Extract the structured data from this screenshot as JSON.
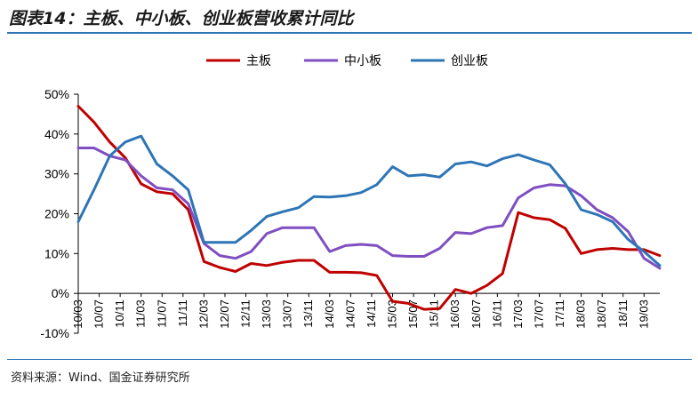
{
  "header": {
    "figure_title": "图表14：主板、中小板、创业板营收累计同比"
  },
  "footer": {
    "source": "资料来源：Wind、国金证券研究所"
  },
  "colors": {
    "main_board": "#c00000",
    "sme_board": "#7f4fc2",
    "chinext": "#2e75b6",
    "rule": "#2e75b6"
  },
  "chart_data": {
    "type": "line",
    "title": "图表14：主板、中小板、创业板营收累计同比",
    "xlabel": "",
    "ylabel": "",
    "ylim": [
      -10,
      50
    ],
    "yticks": [
      -10,
      0,
      10,
      20,
      30,
      40,
      50
    ],
    "ytick_labels": [
      "-10%",
      "0%",
      "10%",
      "20%",
      "30%",
      "40%",
      "50%"
    ],
    "grid": false,
    "legend_position": "top-center",
    "x": [
      "10/03",
      "10/06",
      "10/09",
      "10/12",
      "11/03",
      "11/06",
      "11/09",
      "11/12",
      "12/03",
      "12/06",
      "12/09",
      "12/12",
      "13/03",
      "13/06",
      "13/09",
      "13/12",
      "14/03",
      "14/06",
      "14/09",
      "14/12",
      "15/03",
      "15/06",
      "15/09",
      "15/12",
      "16/03",
      "16/06",
      "16/09",
      "16/12",
      "17/03",
      "17/06",
      "17/09",
      "17/12",
      "18/03",
      "18/06",
      "18/09",
      "18/12",
      "19/03",
      "19/06"
    ],
    "xtick_labels": [
      "10/03",
      "10/07",
      "10/11",
      "11/03",
      "11/07",
      "11/11",
      "12/03",
      "12/07",
      "12/11",
      "13/03",
      "13/07",
      "13/11",
      "14/03",
      "14/07",
      "14/11",
      "15/03",
      "15/07",
      "15/11",
      "16/03",
      "16/07",
      "16/11",
      "17/03",
      "17/07",
      "17/11",
      "18/03",
      "18/07",
      "18/11",
      "19/03"
    ],
    "series": [
      {
        "name": "主板",
        "values": [
          47,
          43,
          38,
          34,
          27.5,
          25.5,
          25,
          21,
          8,
          6.5,
          5.5,
          7.5,
          7,
          7.8,
          8.3,
          8.3,
          5.3,
          5.3,
          5.2,
          4.5,
          -2,
          -2.5,
          -4,
          -3.8,
          1,
          0,
          2,
          5,
          20.3,
          19,
          18.5,
          16.3,
          10,
          11,
          11.3,
          11,
          11,
          9.5
        ]
      },
      {
        "name": "中小板",
        "values": [
          36.5,
          36.5,
          34.5,
          33.5,
          29.5,
          26.5,
          26,
          22.5,
          12.5,
          9.5,
          8.8,
          10.5,
          15,
          16.5,
          16.5,
          16.5,
          10.5,
          12,
          12.3,
          12,
          9.5,
          9.3,
          9.3,
          11.3,
          15.3,
          15,
          16.5,
          17,
          24,
          26.5,
          27.3,
          27,
          24.5,
          21,
          19,
          15.5,
          8.8,
          6.3
        ]
      },
      {
        "name": "创业板",
        "values": [
          18,
          26,
          34.5,
          38,
          39.5,
          32.5,
          29.5,
          26,
          12.8,
          12.8,
          12.8,
          15.8,
          19.3,
          20.5,
          21.5,
          24.3,
          24.2,
          24.5,
          25.3,
          27.3,
          31.8,
          29.5,
          29.8,
          29.2,
          32.5,
          33,
          32,
          33.8,
          34.8,
          33.5,
          32.3,
          27.5,
          21,
          19.8,
          18,
          13.5,
          10.5,
          7
        ]
      }
    ]
  }
}
